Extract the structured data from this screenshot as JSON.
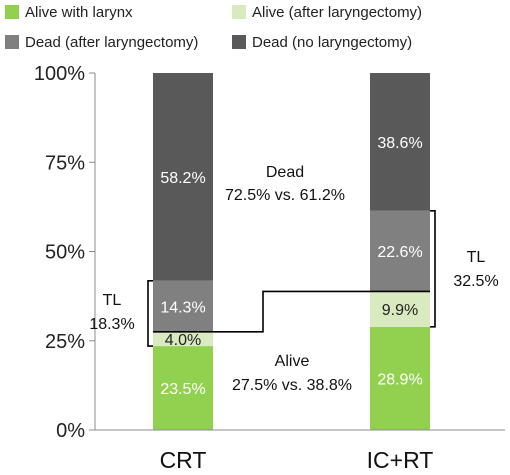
{
  "chart_data": {
    "type": "bar",
    "stacked": true,
    "percent": true,
    "categories": [
      "CRT",
      "IC+RT"
    ],
    "series": [
      {
        "name": "Alive with larynx",
        "values": [
          23.5,
          28.9
        ],
        "labels": [
          "23.5%",
          "28.9%"
        ],
        "color": "#92D050",
        "label_color": "#ffffff"
      },
      {
        "name": "Alive (after laryngectomy)",
        "values": [
          4.0,
          9.9
        ],
        "labels": [
          "4.0%",
          "9.9%"
        ],
        "color": "#D9EAC0",
        "label_color": "#222222"
      },
      {
        "name": "Dead (after laryngectomy)",
        "values": [
          14.3,
          22.6
        ],
        "labels": [
          "14.3%",
          "22.6%"
        ],
        "color": "#808080",
        "label_color": "#ffffff"
      },
      {
        "name": "Dead (no laryngectomy)",
        "values": [
          58.2,
          38.6
        ],
        "labels": [
          "58.2%",
          "38.6%"
        ],
        "color": "#595959",
        "label_color": "#ffffff"
      }
    ],
    "ylim": [
      0,
      100
    ],
    "yticks": [
      0,
      25,
      50,
      75,
      100
    ],
    "ytick_labels": [
      "0%",
      "25%",
      "50%",
      "75%",
      "100%"
    ],
    "legend_position": "top",
    "grid": false,
    "annotations": {
      "dead": {
        "line1": "Dead",
        "line2": "72.5% vs. 61.2%"
      },
      "alive": {
        "line1": "Alive",
        "line2": "27.5% vs. 38.8%"
      },
      "tl_left": {
        "line1": "TL",
        "line2": "18.3%"
      },
      "tl_right": {
        "line1": "TL",
        "line2": "32.5%"
      }
    }
  }
}
